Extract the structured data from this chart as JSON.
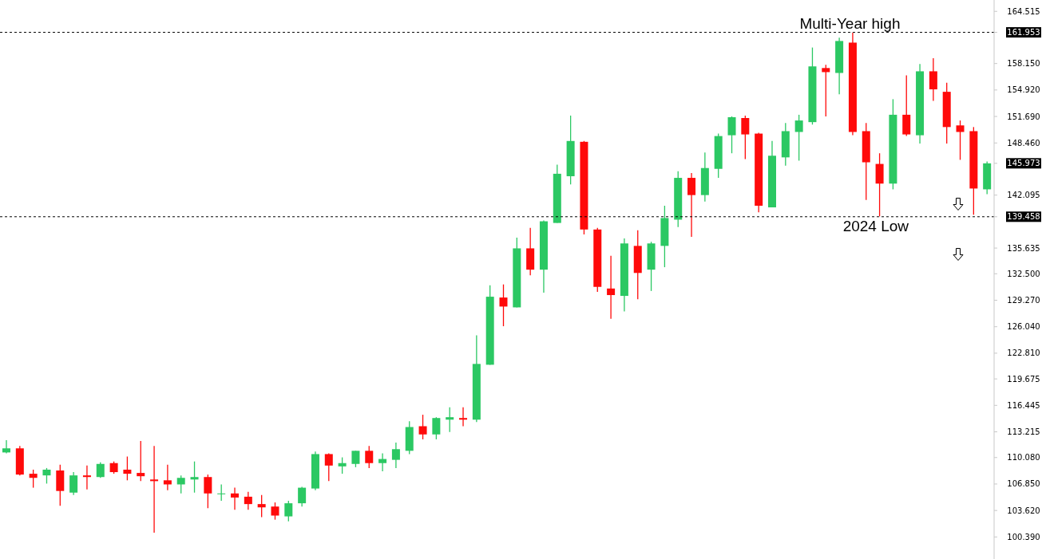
{
  "chart_data": {
    "type": "candlestick",
    "categories": [
      null,
      null,
      null,
      null,
      null,
      null,
      null,
      null,
      null,
      null,
      null,
      null,
      null,
      null,
      null,
      null,
      null,
      null,
      null,
      null,
      null,
      null,
      null,
      null,
      null,
      null,
      null,
      null,
      null,
      null,
      null,
      null,
      null,
      null,
      null,
      null,
      null,
      null,
      null,
      null,
      null,
      null,
      null,
      null,
      null,
      null,
      null,
      null,
      null,
      null,
      null,
      null,
      null,
      null,
      null,
      null,
      null,
      null,
      null,
      null,
      null,
      null,
      null,
      null,
      null,
      null,
      null,
      null,
      null,
      null,
      null,
      null,
      null,
      null
    ],
    "ohlc": [
      [
        110.7,
        112.2,
        110.6,
        111.2
      ],
      [
        111.2,
        111.5,
        107.9,
        108.0
      ],
      [
        108.1,
        108.6,
        106.4,
        107.6
      ],
      [
        107.9,
        108.8,
        106.9,
        108.6
      ],
      [
        108.5,
        109.2,
        104.2,
        106.0
      ],
      [
        105.8,
        108.3,
        105.5,
        107.9
      ],
      [
        107.9,
        109.1,
        106.2,
        107.7
      ],
      [
        107.7,
        109.5,
        107.6,
        109.3
      ],
      [
        109.4,
        109.6,
        108.1,
        108.3
      ],
      [
        108.6,
        110.2,
        107.3,
        108.1
      ],
      [
        108.2,
        112.1,
        107.2,
        107.8
      ],
      [
        107.4,
        111.5,
        100.9,
        107.2
      ],
      [
        107.3,
        109.2,
        106.1,
        106.8
      ],
      [
        106.8,
        107.9,
        105.7,
        107.6
      ],
      [
        107.4,
        109.6,
        105.8,
        107.7
      ],
      [
        107.7,
        108.0,
        103.9,
        105.7
      ],
      [
        105.6,
        106.8,
        104.8,
        105.7
      ],
      [
        105.7,
        106.4,
        103.7,
        105.2
      ],
      [
        105.3,
        105.9,
        103.7,
        104.4
      ],
      [
        104.4,
        105.5,
        102.8,
        104.0
      ],
      [
        104.1,
        104.6,
        102.5,
        103.0
      ],
      [
        102.9,
        104.8,
        102.3,
        104.5
      ],
      [
        104.5,
        106.5,
        104.1,
        106.4
      ],
      [
        106.3,
        110.8,
        106.1,
        110.5
      ],
      [
        110.5,
        110.6,
        107.2,
        109.1
      ],
      [
        109.0,
        110.1,
        108.1,
        109.4
      ],
      [
        109.3,
        110.9,
        108.9,
        110.9
      ],
      [
        110.9,
        111.5,
        108.8,
        109.4
      ],
      [
        109.4,
        110.6,
        108.4,
        109.9
      ],
      [
        109.8,
        111.9,
        108.8,
        111.1
      ],
      [
        110.9,
        114.5,
        110.5,
        113.8
      ],
      [
        113.9,
        115.3,
        112.3,
        112.9
      ],
      [
        112.9,
        115.0,
        112.3,
        114.9
      ],
      [
        114.7,
        116.2,
        113.2,
        115.0
      ],
      [
        114.9,
        116.2,
        113.9,
        114.7
      ],
      [
        114.7,
        125.0,
        114.4,
        121.5
      ],
      [
        121.4,
        131.1,
        121.4,
        129.7
      ],
      [
        129.6,
        131.2,
        126.1,
        128.5
      ],
      [
        128.4,
        136.9,
        128.4,
        135.6
      ],
      [
        135.6,
        138.1,
        132.3,
        133.0
      ],
      [
        133.0,
        139.0,
        130.2,
        138.9
      ],
      [
        138.7,
        145.8,
        138.7,
        144.7
      ],
      [
        144.4,
        151.8,
        143.4,
        148.7
      ],
      [
        148.6,
        148.7,
        137.3,
        137.9
      ],
      [
        137.9,
        138.1,
        130.3,
        130.9
      ],
      [
        130.7,
        134.7,
        127.0,
        129.9
      ],
      [
        129.8,
        136.8,
        127.9,
        136.2
      ],
      [
        135.9,
        137.8,
        129.4,
        132.6
      ],
      [
        133.0,
        136.4,
        130.4,
        136.2
      ],
      [
        135.9,
        140.8,
        133.3,
        139.3
      ],
      [
        139.1,
        145.0,
        138.2,
        144.2
      ],
      [
        144.2,
        144.8,
        137.0,
        142.1
      ],
      [
        142.1,
        147.3,
        141.3,
        145.4
      ],
      [
        145.3,
        149.6,
        144.2,
        149.3
      ],
      [
        149.4,
        151.7,
        147.2,
        151.6
      ],
      [
        151.5,
        151.8,
        146.5,
        149.5
      ],
      [
        149.6,
        149.7,
        140.0,
        140.8
      ],
      [
        140.6,
        148.7,
        140.6,
        146.9
      ],
      [
        146.7,
        150.9,
        145.7,
        149.9
      ],
      [
        149.8,
        151.9,
        146.3,
        151.2
      ],
      [
        151.0,
        160.1,
        150.7,
        157.8
      ],
      [
        157.6,
        158.0,
        151.7,
        157.1
      ],
      [
        157.0,
        161.3,
        154.4,
        160.9
      ],
      [
        160.7,
        161.9,
        149.4,
        149.8
      ],
      [
        149.9,
        150.9,
        141.5,
        146.1
      ],
      [
        145.9,
        147.2,
        139.5,
        143.5
      ],
      [
        143.5,
        153.8,
        142.8,
        151.9
      ],
      [
        151.9,
        156.7,
        149.3,
        149.5
      ],
      [
        149.4,
        158.1,
        148.4,
        157.2
      ],
      [
        157.2,
        158.8,
        153.6,
        155.0
      ],
      [
        154.7,
        155.8,
        148.4,
        150.4
      ],
      [
        150.6,
        151.2,
        146.4,
        149.8
      ],
      [
        149.9,
        150.4,
        139.7,
        142.9
      ],
      [
        142.8,
        146.2,
        142.2,
        145.973
      ]
    ],
    "colors": [
      "#2bc863",
      "#ff0a0a",
      "#ff0a0a",
      "#2bc863",
      "#ff0a0a",
      "#2bc863",
      "#ff0a0a",
      "#2bc863",
      "#ff0a0a",
      "#ff0a0a",
      "#ff0a0a",
      "#ff0a0a",
      "#ff0a0a",
      "#2bc863",
      "#2bc863",
      "#ff0a0a",
      "#2bc863",
      "#ff0a0a",
      "#ff0a0a",
      "#ff0a0a",
      "#ff0a0a",
      "#2bc863",
      "#2bc863",
      "#2bc863",
      "#ff0a0a",
      "#2bc863",
      "#2bc863",
      "#ff0a0a",
      "#2bc863",
      "#2bc863",
      "#2bc863",
      "#ff0a0a",
      "#2bc863",
      "#2bc863",
      "#ff0a0a",
      "#2bc863",
      "#2bc863",
      "#ff0a0a",
      "#2bc863",
      "#ff0a0a",
      "#2bc863",
      "#2bc863",
      "#2bc863",
      "#ff0a0a",
      "#ff0a0a",
      "#ff0a0a",
      "#2bc863",
      "#ff0a0a",
      "#2bc863",
      "#2bc863",
      "#2bc863",
      "#ff0a0a",
      "#2bc863",
      "#2bc863",
      "#2bc863",
      "#ff0a0a",
      "#ff0a0a",
      "#2bc863",
      "#2bc863",
      "#2bc863",
      "#2bc863",
      "#ff0a0a",
      "#2bc863",
      "#ff0a0a",
      "#ff0a0a",
      "#ff0a0a",
      "#2bc863",
      "#ff0a0a",
      "#2bc863",
      "#ff0a0a",
      "#ff0a0a",
      "#ff0a0a",
      "#ff0a0a",
      "#2bc863"
    ],
    "ylim": [
      97.7,
      165.9
    ],
    "yticks": [
      {
        "value": 100.39,
        "label": "100.390"
      },
      {
        "value": 103.62,
        "label": "103.620"
      },
      {
        "value": 106.85,
        "label": "106.850"
      },
      {
        "value": 110.08,
        "label": "110.080"
      },
      113.215,
      116.445,
      119.675,
      {
        "value": 122.81,
        "label": "122.810"
      },
      {
        "value": 126.04,
        "label": "126.040"
      },
      {
        "value": 129.27,
        "label": "129.270"
      },
      {
        "value": 132.5,
        "label": "132.500"
      },
      135.635,
      142.095,
      {
        "value": 148.46,
        "label": "148.460"
      },
      {
        "value": 151.69,
        "label": "151.690"
      },
      {
        "value": 154.92,
        "label": "154.920"
      },
      {
        "value": 158.15,
        "label": "158.150"
      },
      164.515,
      {
        "value": 161.953,
        "label": "161.953"
      },
      {
        "value": 145.973,
        "label": "145.973"
      },
      {
        "value": 139.458,
        "label": "139.458"
      }
    ],
    "ref_lines": [
      {
        "axis": "y",
        "value": 161.953,
        "label": "Multi-Year high",
        "color": "#000000",
        "line_style": "dashed"
      },
      {
        "axis": "y",
        "value": 139.458,
        "label": "2024 Low",
        "color": "#000000",
        "line_style": "dashed"
      }
    ],
    "grid": false,
    "legend": false,
    "tick_labels": "y"
  }
}
